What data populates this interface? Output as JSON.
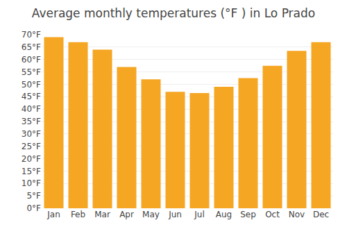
{
  "chart_data": {
    "type": "bar",
    "title": "Average monthly temperatures (°F ) in Lo Prado",
    "categories": [
      "Jan",
      "Feb",
      "Mar",
      "Apr",
      "May",
      "Jun",
      "Jul",
      "Aug",
      "Sep",
      "Oct",
      "Nov",
      "Dec"
    ],
    "values": [
      69,
      67,
      64,
      57,
      52,
      47,
      46.5,
      49,
      52.5,
      57.5,
      63.5,
      67
    ],
    "color": "#F5A623",
    "ylim": [
      0,
      70
    ],
    "yticks": [
      {
        "value": 0,
        "label": "0°F"
      },
      {
        "value": 5,
        "label": "5°F"
      },
      {
        "value": 10,
        "label": "10°F"
      },
      {
        "value": 15,
        "label": "15°F"
      },
      {
        "value": 20,
        "label": "20°F"
      },
      {
        "value": 25,
        "label": "25°F"
      },
      {
        "value": 30,
        "label": "30°F"
      },
      {
        "value": 35,
        "label": "35°F"
      },
      {
        "value": 40,
        "label": "40°F"
      },
      {
        "value": 45,
        "label": "45°F"
      },
      {
        "value": 50,
        "label": "50°F"
      },
      {
        "value": 55,
        "label": "55°F"
      },
      {
        "value": 60,
        "label": "60°F"
      },
      {
        "value": 65,
        "label": "65°F"
      },
      {
        "value": 70,
        "label": "70°F"
      }
    ],
    "grid": true
  }
}
